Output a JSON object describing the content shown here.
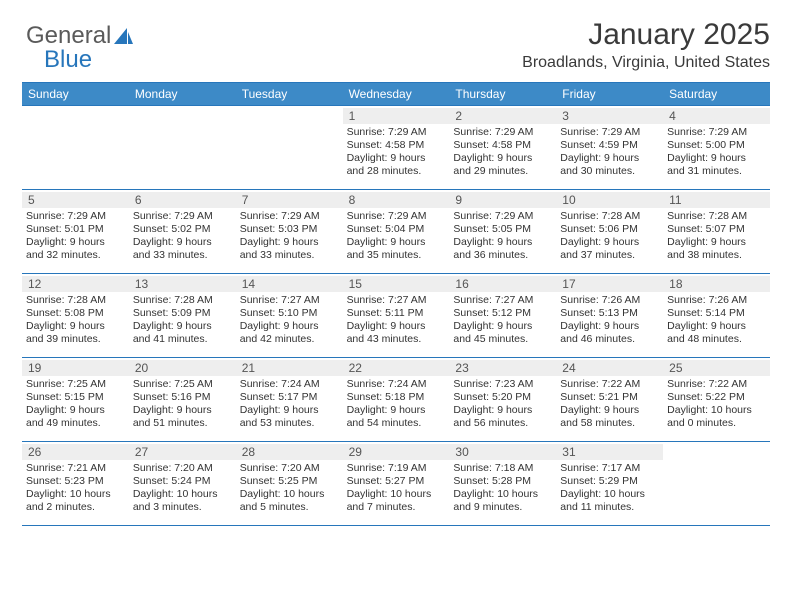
{
  "brand": {
    "part1": "General",
    "part2": "Blue"
  },
  "header": {
    "month": "January 2025",
    "location": "Broadlands, Virginia, United States"
  },
  "colors": {
    "header_bg": "#3d8ac7",
    "rule": "#2776bb",
    "daynum_bg": "#eeeeee",
    "text": "#333333"
  },
  "dayNames": [
    "Sunday",
    "Monday",
    "Tuesday",
    "Wednesday",
    "Thursday",
    "Friday",
    "Saturday"
  ],
  "leadingBlanks": 3,
  "days": [
    {
      "n": "1",
      "sunrise": "7:29 AM",
      "sunset": "4:58 PM",
      "dayh": "9",
      "daym": "28"
    },
    {
      "n": "2",
      "sunrise": "7:29 AM",
      "sunset": "4:58 PM",
      "dayh": "9",
      "daym": "29"
    },
    {
      "n": "3",
      "sunrise": "7:29 AM",
      "sunset": "4:59 PM",
      "dayh": "9",
      "daym": "30"
    },
    {
      "n": "4",
      "sunrise": "7:29 AM",
      "sunset": "5:00 PM",
      "dayh": "9",
      "daym": "31"
    },
    {
      "n": "5",
      "sunrise": "7:29 AM",
      "sunset": "5:01 PM",
      "dayh": "9",
      "daym": "32"
    },
    {
      "n": "6",
      "sunrise": "7:29 AM",
      "sunset": "5:02 PM",
      "dayh": "9",
      "daym": "33"
    },
    {
      "n": "7",
      "sunrise": "7:29 AM",
      "sunset": "5:03 PM",
      "dayh": "9",
      "daym": "33"
    },
    {
      "n": "8",
      "sunrise": "7:29 AM",
      "sunset": "5:04 PM",
      "dayh": "9",
      "daym": "35"
    },
    {
      "n": "9",
      "sunrise": "7:29 AM",
      "sunset": "5:05 PM",
      "dayh": "9",
      "daym": "36"
    },
    {
      "n": "10",
      "sunrise": "7:28 AM",
      "sunset": "5:06 PM",
      "dayh": "9",
      "daym": "37"
    },
    {
      "n": "11",
      "sunrise": "7:28 AM",
      "sunset": "5:07 PM",
      "dayh": "9",
      "daym": "38"
    },
    {
      "n": "12",
      "sunrise": "7:28 AM",
      "sunset": "5:08 PM",
      "dayh": "9",
      "daym": "39"
    },
    {
      "n": "13",
      "sunrise": "7:28 AM",
      "sunset": "5:09 PM",
      "dayh": "9",
      "daym": "41"
    },
    {
      "n": "14",
      "sunrise": "7:27 AM",
      "sunset": "5:10 PM",
      "dayh": "9",
      "daym": "42"
    },
    {
      "n": "15",
      "sunrise": "7:27 AM",
      "sunset": "5:11 PM",
      "dayh": "9",
      "daym": "43"
    },
    {
      "n": "16",
      "sunrise": "7:27 AM",
      "sunset": "5:12 PM",
      "dayh": "9",
      "daym": "45"
    },
    {
      "n": "17",
      "sunrise": "7:26 AM",
      "sunset": "5:13 PM",
      "dayh": "9",
      "daym": "46"
    },
    {
      "n": "18",
      "sunrise": "7:26 AM",
      "sunset": "5:14 PM",
      "dayh": "9",
      "daym": "48"
    },
    {
      "n": "19",
      "sunrise": "7:25 AM",
      "sunset": "5:15 PM",
      "dayh": "9",
      "daym": "49"
    },
    {
      "n": "20",
      "sunrise": "7:25 AM",
      "sunset": "5:16 PM",
      "dayh": "9",
      "daym": "51"
    },
    {
      "n": "21",
      "sunrise": "7:24 AM",
      "sunset": "5:17 PM",
      "dayh": "9",
      "daym": "53"
    },
    {
      "n": "22",
      "sunrise": "7:24 AM",
      "sunset": "5:18 PM",
      "dayh": "9",
      "daym": "54"
    },
    {
      "n": "23",
      "sunrise": "7:23 AM",
      "sunset": "5:20 PM",
      "dayh": "9",
      "daym": "56"
    },
    {
      "n": "24",
      "sunrise": "7:22 AM",
      "sunset": "5:21 PM",
      "dayh": "9",
      "daym": "58"
    },
    {
      "n": "25",
      "sunrise": "7:22 AM",
      "sunset": "5:22 PM",
      "dayh": "10",
      "daym": "0"
    },
    {
      "n": "26",
      "sunrise": "7:21 AM",
      "sunset": "5:23 PM",
      "dayh": "10",
      "daym": "2"
    },
    {
      "n": "27",
      "sunrise": "7:20 AM",
      "sunset": "5:24 PM",
      "dayh": "10",
      "daym": "3"
    },
    {
      "n": "28",
      "sunrise": "7:20 AM",
      "sunset": "5:25 PM",
      "dayh": "10",
      "daym": "5"
    },
    {
      "n": "29",
      "sunrise": "7:19 AM",
      "sunset": "5:27 PM",
      "dayh": "10",
      "daym": "7"
    },
    {
      "n": "30",
      "sunrise": "7:18 AM",
      "sunset": "5:28 PM",
      "dayh": "10",
      "daym": "9"
    },
    {
      "n": "31",
      "sunrise": "7:17 AM",
      "sunset": "5:29 PM",
      "dayh": "10",
      "daym": "11"
    }
  ],
  "labels": {
    "sunrise": "Sunrise:",
    "sunset": "Sunset:",
    "daylight": "Daylight:",
    "hours": "hours",
    "and": "and",
    "minutes": "minutes."
  }
}
